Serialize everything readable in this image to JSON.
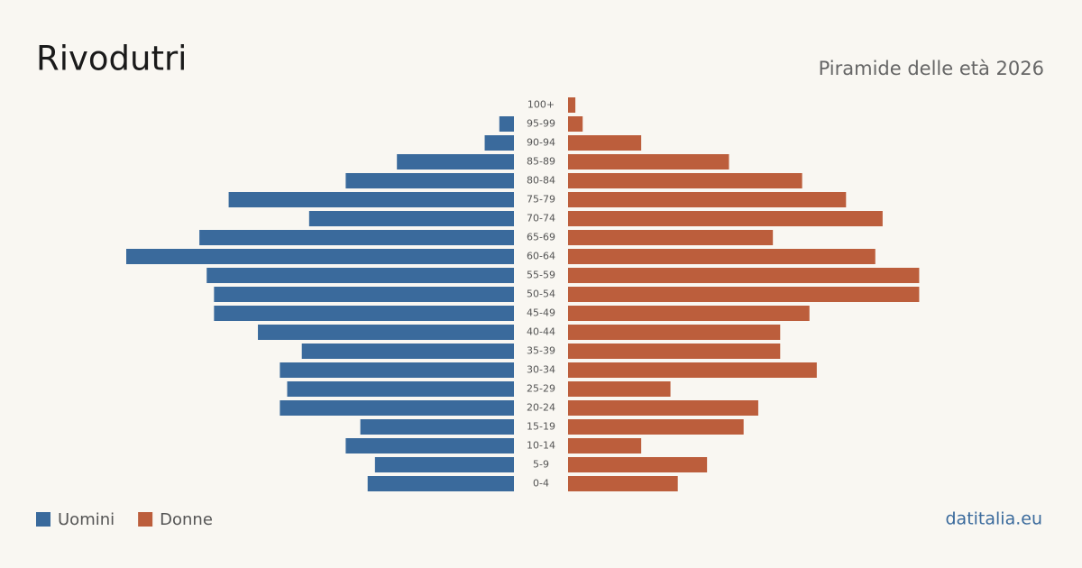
{
  "chart_data": {
    "type": "pyramid",
    "title": "Rivodutri",
    "subtitle": "Piramide delle età 2026",
    "source": "datitalia.eu",
    "categories": [
      "100+",
      "95-99",
      "90-94",
      "85-89",
      "80-84",
      "75-79",
      "70-74",
      "65-69",
      "60-64",
      "55-59",
      "50-54",
      "45-49",
      "40-44",
      "35-39",
      "30-34",
      "25-29",
      "20-24",
      "15-19",
      "10-14",
      "5-9",
      "0-4"
    ],
    "series": [
      {
        "name": "Uomini",
        "color": "#3a6a9c",
        "values": [
          0,
          2,
          4,
          16,
          23,
          39,
          28,
          43,
          53,
          42,
          41,
          41,
          35,
          29,
          32,
          31,
          32,
          21,
          23,
          19,
          20
        ]
      },
      {
        "name": "Donne",
        "color": "#bc5e3c",
        "values": [
          1,
          2,
          10,
          22,
          32,
          38,
          43,
          28,
          42,
          48,
          48,
          33,
          29,
          29,
          34,
          14,
          26,
          24,
          10,
          19,
          15
        ]
      }
    ]
  }
}
